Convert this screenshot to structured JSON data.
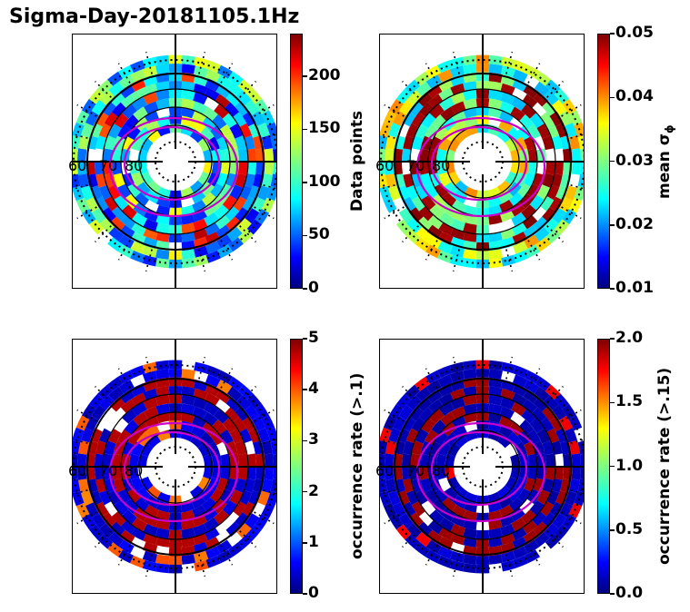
{
  "title": "Sigma-Day-20181105.1Hz",
  "chart_data": [
    {
      "type": "heatmap",
      "projection": "polar",
      "latitude_labels": [
        "60",
        "70",
        "80"
      ],
      "colorbar": {
        "label": "Data points",
        "ticks": [
          "0",
          "50",
          "100",
          "150",
          "200"
        ],
        "range": [
          0,
          240
        ],
        "colormap": "jet"
      }
    },
    {
      "type": "heatmap",
      "projection": "polar",
      "latitude_labels": [
        "60",
        "70",
        "80"
      ],
      "colorbar": {
        "label": "mean σ",
        "label_sub": "ϕ",
        "ticks": [
          "0.01",
          "0.02",
          "0.03",
          "0.04",
          "0.05"
        ],
        "range": [
          0.01,
          0.05
        ],
        "colormap": "jet"
      }
    },
    {
      "type": "heatmap",
      "projection": "polar",
      "latitude_labels": [
        "60",
        "70",
        "80"
      ],
      "colorbar": {
        "label": "occurrence rate (>.1)",
        "ticks": [
          "0",
          "1",
          "2",
          "3",
          "4",
          "5"
        ],
        "range": [
          0,
          5
        ],
        "colormap": "jet"
      }
    },
    {
      "type": "heatmap",
      "projection": "polar",
      "latitude_labels": [
        "60",
        "70",
        "80"
      ],
      "colorbar": {
        "label": "occurrence rate (>.15)",
        "ticks": [
          "0.0",
          "0.5",
          "1.0",
          "1.5",
          "2.0"
        ],
        "range": [
          0,
          2
        ],
        "colormap": "jet"
      }
    }
  ],
  "colors": {
    "auroral_oval": "#cc00cc",
    "grid": "#000000"
  }
}
